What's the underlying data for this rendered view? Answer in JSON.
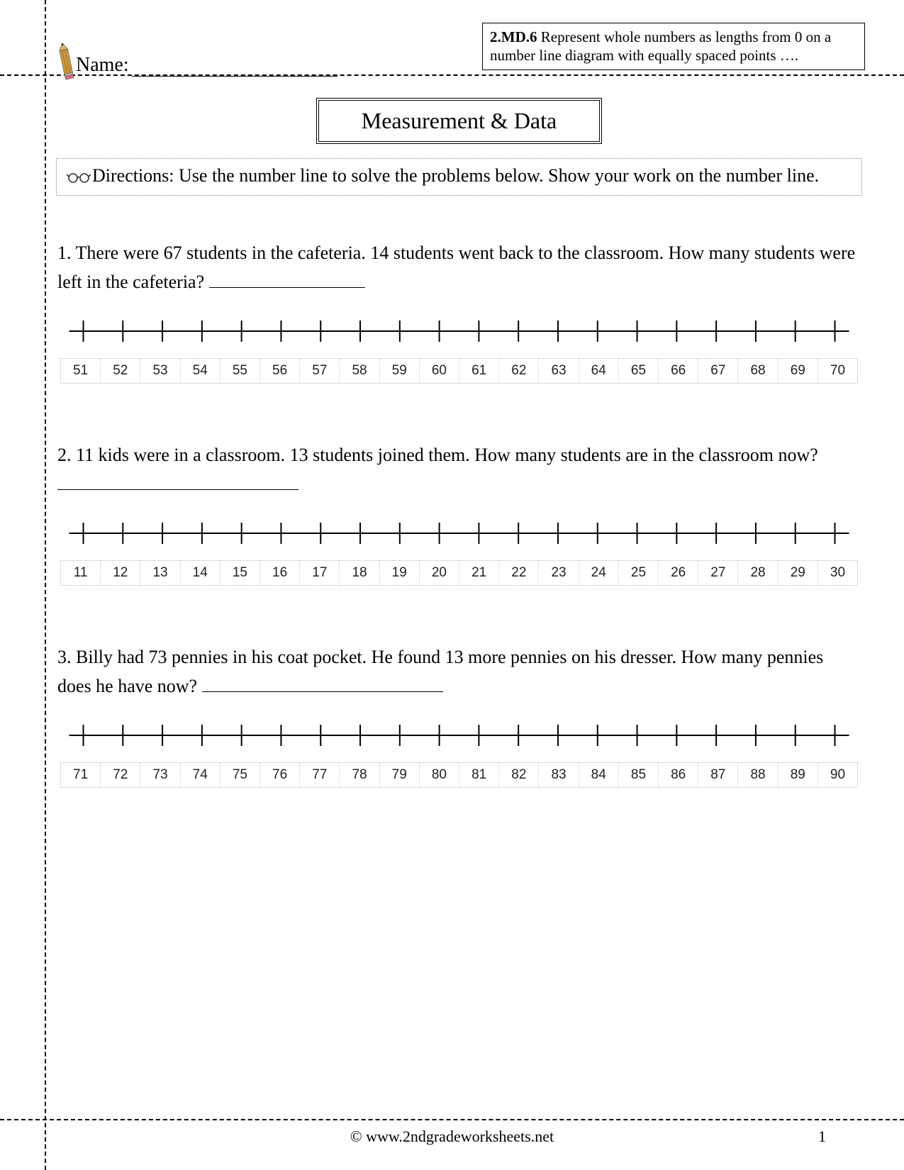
{
  "header": {
    "name_label": "Name:",
    "standard_code": "2.MD.6",
    "standard_text": " Represent whole numbers as lengths from 0 on a number line diagram with equally spaced points …."
  },
  "title": "Measurement & Data",
  "directions": "Directions:  Use the number line to solve the problems below.  Show your work on the number line.",
  "problems": [
    {
      "num": "1.",
      "text": "There were 67 students in the cafeteria.  14 students went back to the classroom.  How many students were left in the cafeteria?",
      "answer_line_width": 220,
      "numberline": {
        "start": 51,
        "end": 70
      }
    },
    {
      "num": "2.",
      "text": "11 kids were in a classroom.  13 students joined them.  How many students are in the classroom now?",
      "answer_line_width": 340,
      "numberline": {
        "start": 11,
        "end": 30
      }
    },
    {
      "num": "3.",
      "text": "Billy had 73 pennies in his coat pocket.  He found 13 more pennies on his dresser.  How many pennies does he have now?",
      "answer_line_width": 340,
      "numberline": {
        "start": 71,
        "end": 90
      }
    }
  ],
  "footer": {
    "copyright": "© www.2ndgradeworksheets.net",
    "page": "1"
  },
  "style": {
    "line_color": "#000000",
    "tick_height": 30,
    "label_border_color": "#bbbbbb",
    "label_font_size": 19
  }
}
